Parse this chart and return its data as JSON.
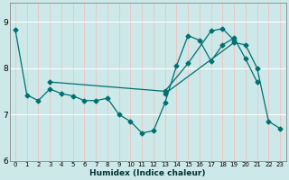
{
  "xlabel": "Humidex (Indice chaleur)",
  "xlim": [
    -0.5,
    23.5
  ],
  "ylim": [
    6.0,
    9.4
  ],
  "yticks": [
    6,
    7,
    8,
    9
  ],
  "xticks": [
    0,
    1,
    2,
    3,
    4,
    5,
    6,
    7,
    8,
    9,
    10,
    11,
    12,
    13,
    14,
    15,
    16,
    17,
    18,
    19,
    20,
    21,
    22,
    23
  ],
  "bg_color": "#cce8e8",
  "grid_color_h": "#ffffff",
  "grid_color_v": "#f0c0c0",
  "line_color": "#007070",
  "series": [
    {
      "x": [
        0,
        1,
        2,
        3,
        4,
        5,
        6,
        7,
        8,
        9,
        10,
        11,
        12,
        13,
        14,
        15,
        16,
        17,
        18,
        19,
        20,
        21
      ],
      "y": [
        8.82,
        7.42,
        7.3,
        7.55,
        7.45,
        7.4,
        7.3,
        7.3,
        7.35,
        7.0,
        6.85,
        6.6,
        6.65,
        7.25,
        8.05,
        8.7,
        8.6,
        8.15,
        8.5,
        8.65,
        8.2,
        7.7
      ]
    },
    {
      "x": [
        3,
        13,
        15,
        17,
        18,
        19
      ],
      "y": [
        7.7,
        7.5,
        8.1,
        8.8,
        8.85,
        8.6
      ]
    },
    {
      "x": [
        13,
        19,
        20,
        21,
        22,
        23
      ],
      "y": [
        7.45,
        8.55,
        8.5,
        8.0,
        6.85,
        6.7
      ]
    }
  ]
}
